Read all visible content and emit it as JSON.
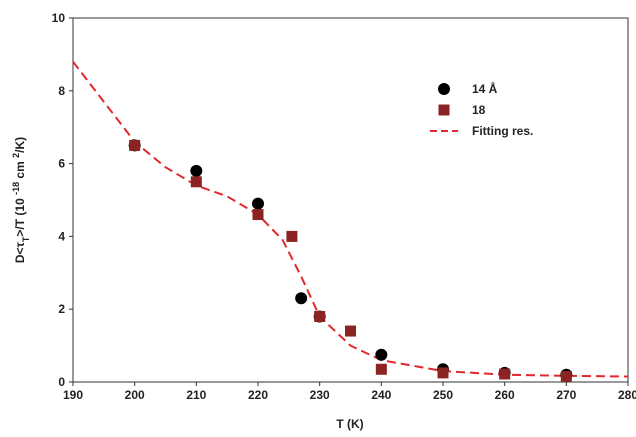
{
  "chart_data": {
    "type": "scatter",
    "x_label": "T (K)",
    "y_label": [
      "D<τ",
      "T",
      ">/T (10 ",
      "-18",
      " cm ",
      "2",
      "/K)"
    ],
    "xlim": [
      190,
      280
    ],
    "xticks": [
      190,
      200,
      210,
      220,
      230,
      240,
      250,
      260,
      270,
      280
    ],
    "ylim": [
      0,
      10
    ],
    "yticks": [
      0,
      2,
      4,
      6,
      8,
      10
    ],
    "grid": false,
    "legend": "upper right",
    "series": [
      {
        "name": "14 Å",
        "color": "#000000",
        "marker": "circle",
        "x": [
          200,
          210,
          220,
          227,
          230,
          240,
          250,
          260,
          270
        ],
        "values": [
          6.5,
          5.8,
          4.9,
          2.3,
          1.8,
          0.75,
          0.35,
          0.25,
          0.2
        ]
      },
      {
        "name": "18",
        "color": "#8b2323",
        "marker": "square",
        "x": [
          200,
          210,
          220,
          225.5,
          230,
          235,
          240,
          250,
          260,
          270
        ],
        "values": [
          6.5,
          5.5,
          4.6,
          4.0,
          1.8,
          1.4,
          0.35,
          0.25,
          0.22,
          0.15
        ]
      },
      {
        "name": "Fitting res.",
        "color": "#e0282e",
        "marker": "dashed-line",
        "x": [
          190,
          195,
          200,
          205,
          210,
          215,
          220,
          224,
          227,
          230,
          235,
          240,
          250,
          260,
          270,
          280
        ],
        "values": [
          8.8,
          7.7,
          6.6,
          5.9,
          5.4,
          5.1,
          4.6,
          3.9,
          2.9,
          1.8,
          1.0,
          0.6,
          0.3,
          0.2,
          0.17,
          0.15
        ]
      }
    ]
  }
}
